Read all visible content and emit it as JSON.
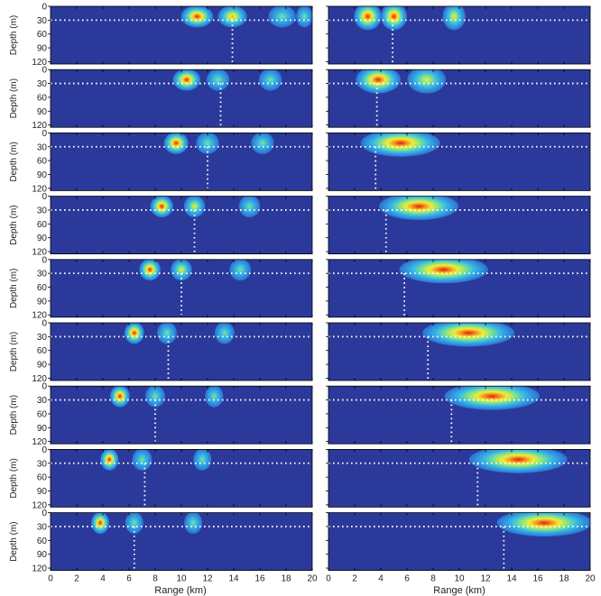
{
  "figure": {
    "columns": 2,
    "rows": 9
  },
  "chart_data": [
    {
      "type": "heatmap",
      "column": "left",
      "xlabel": "Range (km)",
      "ylabel": "Depth (m)",
      "xlim": [
        0,
        20
      ],
      "ylim": [
        0,
        125
      ],
      "xticks": [
        "0",
        "2",
        "4",
        "6",
        "8",
        "10",
        "12",
        "14",
        "16",
        "18",
        "20"
      ],
      "yticks": [
        "0",
        "30",
        "60",
        "90",
        "120"
      ],
      "reference_depth_m": 30,
      "colormap": [
        "#2b3a9a",
        "#2d6fd0",
        "#35b6e8",
        "#7fe38a",
        "#f0ec3a",
        "#f59a22",
        "#e02010"
      ],
      "panels": [
        {
          "marker_range_km": 13.9,
          "blobs": [
            {
              "x": 11.2,
              "w": 1.6,
              "peak": 1.0
            },
            {
              "x": 13.9,
              "w": 1.4,
              "peak": 0.8
            },
            {
              "x": 17.7,
              "w": 1.3,
              "peak": 0.45
            },
            {
              "x": 19.4,
              "w": 0.6,
              "peak": 0.4
            }
          ]
        },
        {
          "marker_range_km": 13.0,
          "blobs": [
            {
              "x": 10.4,
              "w": 1.3,
              "peak": 1.0
            },
            {
              "x": 12.8,
              "w": 1.0,
              "peak": 0.5
            },
            {
              "x": 16.8,
              "w": 1.0,
              "peak": 0.4
            }
          ]
        },
        {
          "marker_range_km": 12.0,
          "blobs": [
            {
              "x": 9.6,
              "w": 1.1,
              "peak": 1.0
            },
            {
              "x": 12.0,
              "w": 1.0,
              "peak": 0.5
            },
            {
              "x": 16.2,
              "w": 1.0,
              "peak": 0.4
            }
          ]
        },
        {
          "marker_range_km": 11.0,
          "blobs": [
            {
              "x": 8.5,
              "w": 1.0,
              "peak": 1.0
            },
            {
              "x": 11.0,
              "w": 0.9,
              "peak": 0.55
            },
            {
              "x": 15.2,
              "w": 0.9,
              "peak": 0.4
            }
          ]
        },
        {
          "marker_range_km": 10.0,
          "blobs": [
            {
              "x": 7.6,
              "w": 0.9,
              "peak": 1.0
            },
            {
              "x": 10.0,
              "w": 0.9,
              "peak": 0.55
            },
            {
              "x": 14.5,
              "w": 0.9,
              "peak": 0.4
            }
          ]
        },
        {
          "marker_range_km": 9.0,
          "blobs": [
            {
              "x": 6.4,
              "w": 0.8,
              "peak": 1.0
            },
            {
              "x": 8.9,
              "w": 0.8,
              "peak": 0.5
            },
            {
              "x": 13.3,
              "w": 0.8,
              "peak": 0.4
            }
          ]
        },
        {
          "marker_range_km": 8.0,
          "blobs": [
            {
              "x": 5.3,
              "w": 0.8,
              "peak": 1.0
            },
            {
              "x": 8.0,
              "w": 0.8,
              "peak": 0.5
            },
            {
              "x": 12.5,
              "w": 0.7,
              "peak": 0.4
            }
          ]
        },
        {
          "marker_range_km": 7.2,
          "blobs": [
            {
              "x": 4.5,
              "w": 0.7,
              "peak": 1.0
            },
            {
              "x": 7.0,
              "w": 0.8,
              "peak": 0.5
            },
            {
              "x": 11.6,
              "w": 0.7,
              "peak": 0.4
            }
          ]
        },
        {
          "marker_range_km": 6.4,
          "blobs": [
            {
              "x": 3.8,
              "w": 0.7,
              "peak": 1.0
            },
            {
              "x": 6.4,
              "w": 0.7,
              "peak": 0.5
            },
            {
              "x": 10.9,
              "w": 0.7,
              "peak": 0.4
            }
          ]
        }
      ]
    },
    {
      "type": "heatmap",
      "column": "right",
      "xlabel": "Range (km)",
      "ylabel": "",
      "xlim": [
        0,
        20
      ],
      "ylim": [
        0,
        125
      ],
      "xticks": [
        "0",
        "2",
        "4",
        "6",
        "8",
        "10",
        "12",
        "14",
        "16",
        "18",
        "20"
      ],
      "reference_depth_m": 30,
      "colormap": [
        "#2b3a9a",
        "#2d6fd0",
        "#35b6e8",
        "#7fe38a",
        "#f0ec3a",
        "#f59a22",
        "#e02010"
      ],
      "panels": [
        {
          "marker_range_km": 4.9,
          "blobs": [
            {
              "x": 3.0,
              "w": 1.3,
              "peak": 0.95
            },
            {
              "x": 5.0,
              "w": 1.2,
              "peak": 0.95
            },
            {
              "x": 9.6,
              "w": 1.0,
              "peak": 0.6
            }
          ]
        },
        {
          "marker_range_km": 3.7,
          "blobs": [
            {
              "x": 3.8,
              "w": 2.4,
              "peak": 1.0
            },
            {
              "x": 7.5,
              "w": 2.0,
              "peak": 0.55
            }
          ]
        },
        {
          "marker_range_km": 3.6,
          "blobs": [
            {
              "x": 5.5,
              "w": 4.6,
              "peak": 1.0
            }
          ]
        },
        {
          "marker_range_km": 4.4,
          "blobs": [
            {
              "x": 6.9,
              "w": 4.6,
              "peak": 1.0
            }
          ]
        },
        {
          "marker_range_km": 5.8,
          "blobs": [
            {
              "x": 8.8,
              "w": 5.2,
              "peak": 1.0
            }
          ]
        },
        {
          "marker_range_km": 7.6,
          "blobs": [
            {
              "x": 10.7,
              "w": 5.4,
              "peak": 1.0
            }
          ]
        },
        {
          "marker_range_km": 9.4,
          "blobs": [
            {
              "x": 12.5,
              "w": 5.6,
              "peak": 1.0
            }
          ]
        },
        {
          "marker_range_km": 11.4,
          "blobs": [
            {
              "x": 14.5,
              "w": 5.8,
              "peak": 1.0
            }
          ]
        },
        {
          "marker_range_km": 13.4,
          "blobs": [
            {
              "x": 16.5,
              "w": 5.6,
              "peak": 1.0
            }
          ]
        }
      ]
    }
  ]
}
